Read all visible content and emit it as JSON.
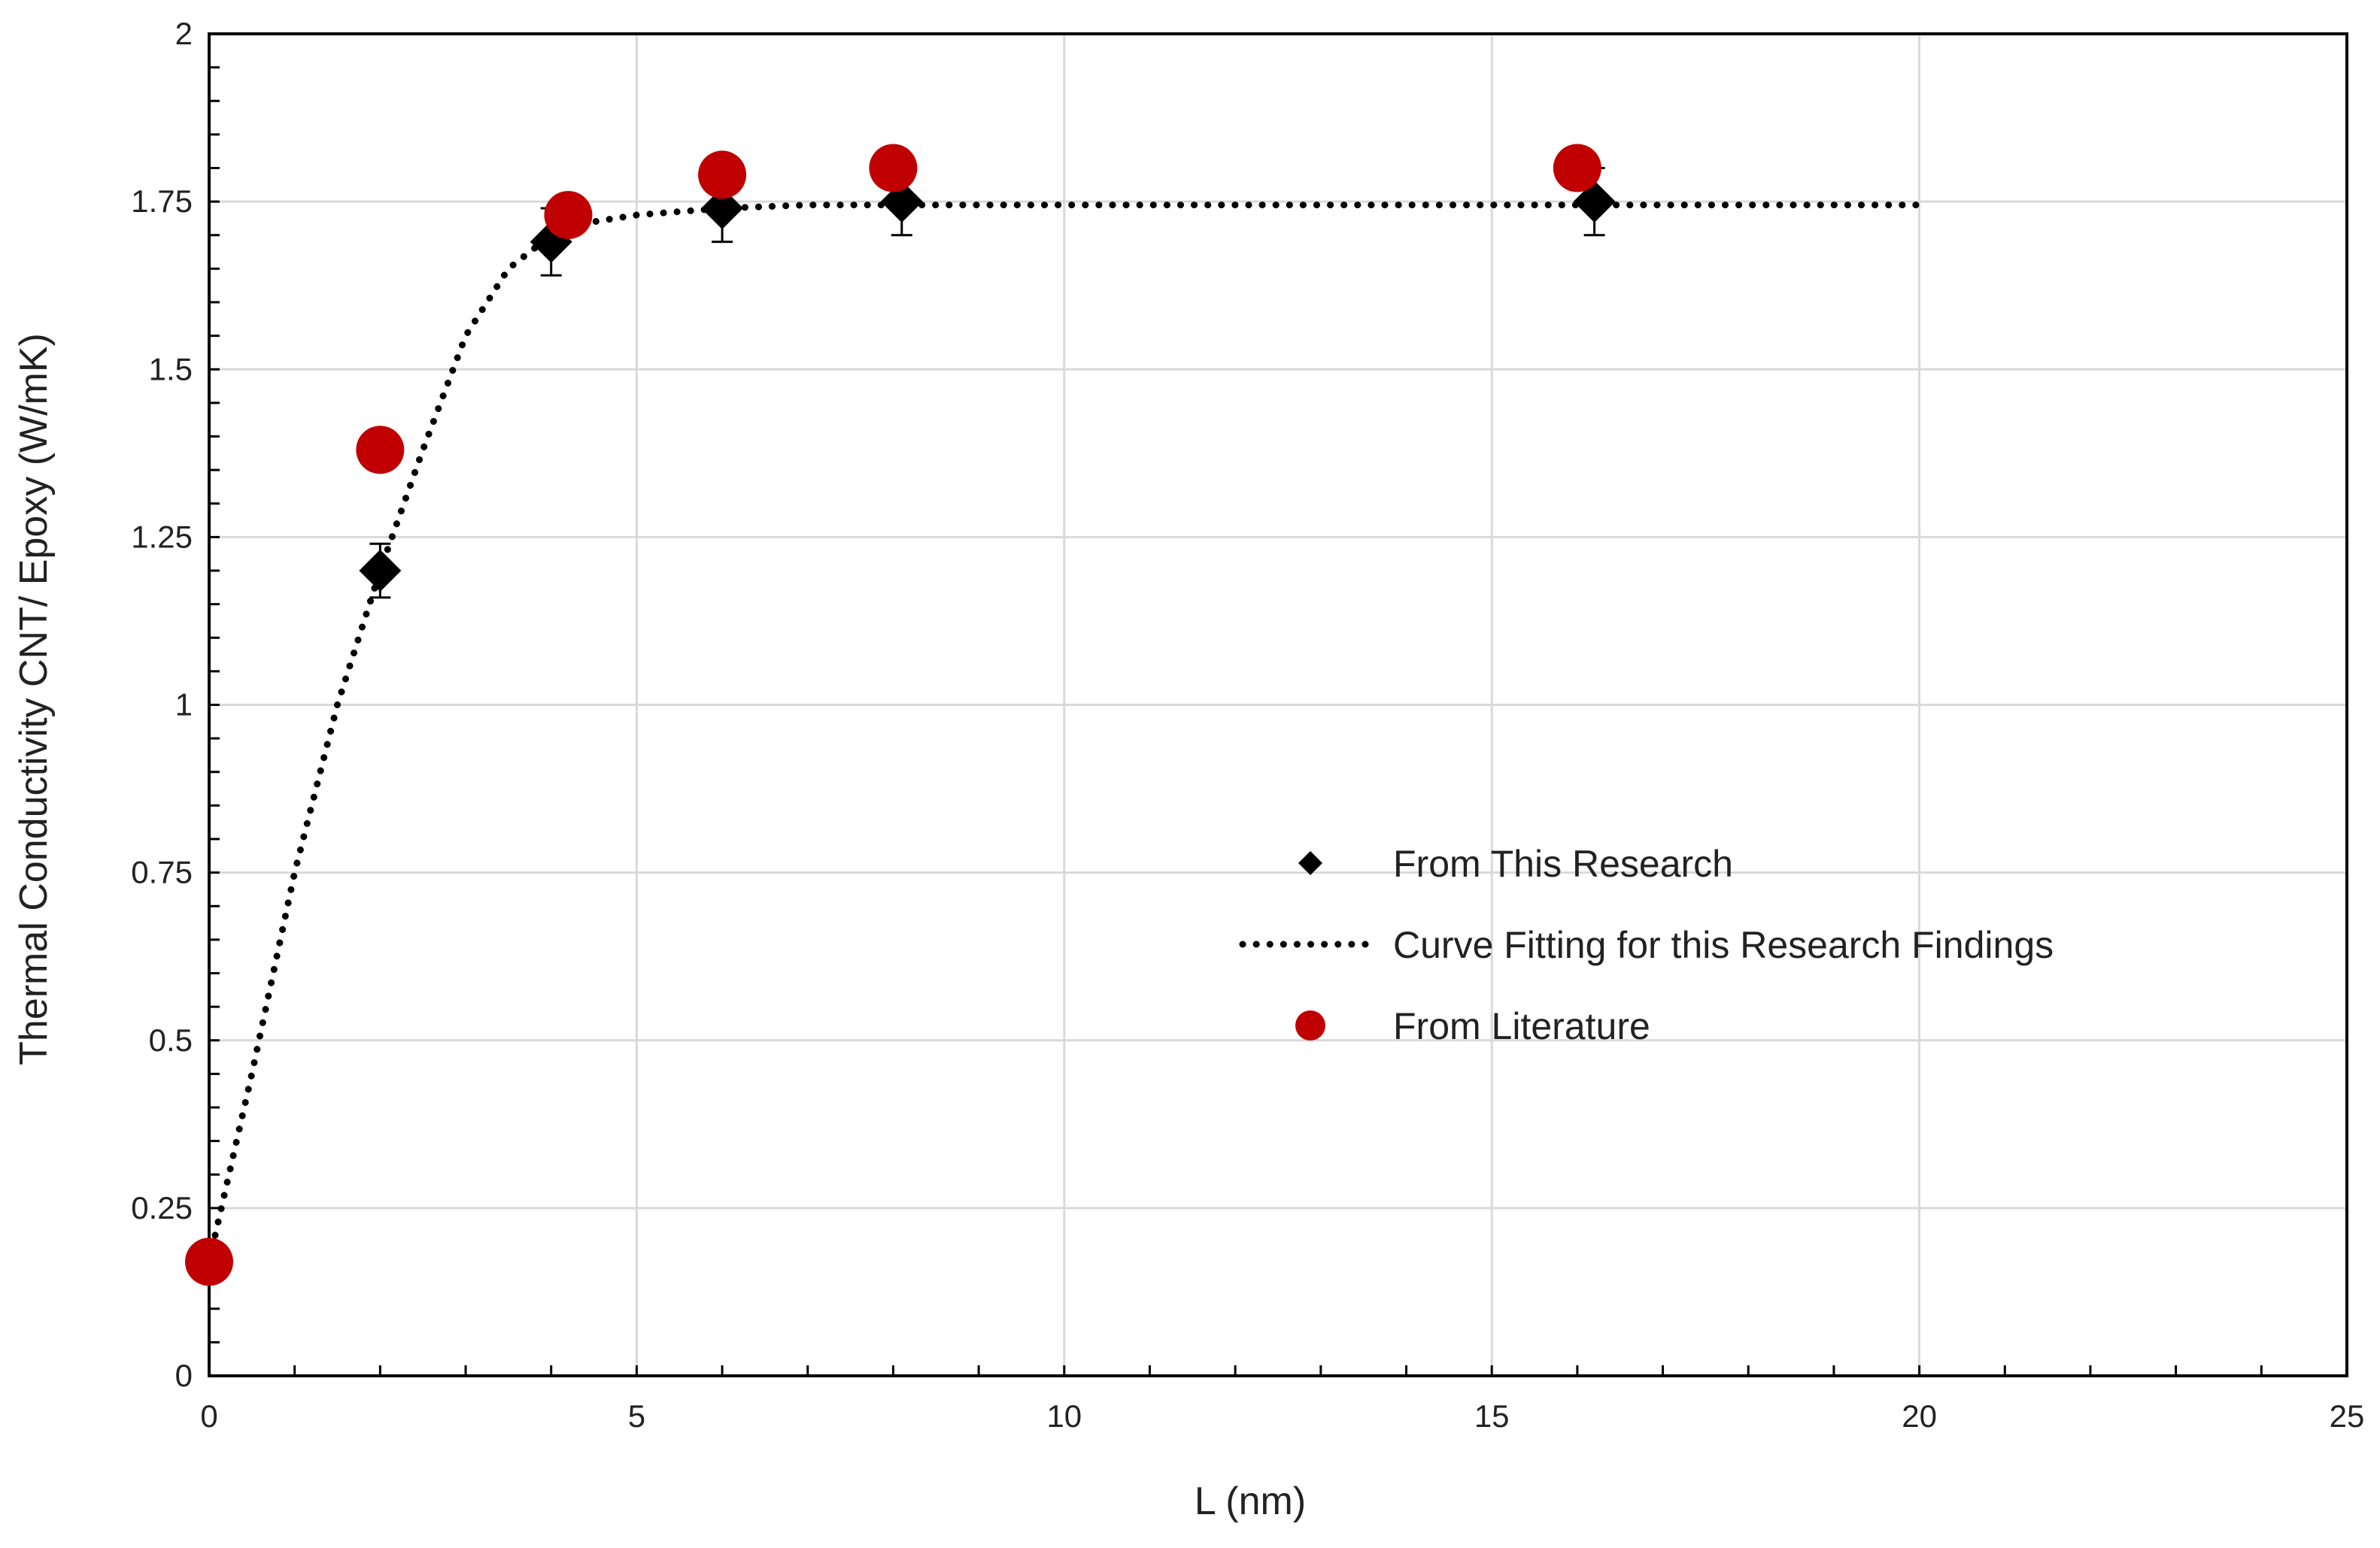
{
  "chart_data": {
    "type": "scatter",
    "title": "",
    "xlabel": "L (nm)",
    "ylabel": "Thermal Conductivity CNT/ Epoxy (W/mK)",
    "xlim": [
      0,
      25
    ],
    "ylim": [
      0,
      2
    ],
    "x_ticks": [
      0,
      5,
      10,
      15,
      20,
      25
    ],
    "y_ticks": [
      0,
      0.25,
      0.5,
      0.75,
      1,
      1.25,
      1.5,
      1.75,
      2
    ],
    "x_tick_labels": [
      "0",
      "5",
      "10",
      "15",
      "20",
      "25"
    ],
    "y_tick_labels": [
      "0",
      "0.25",
      "0.5",
      "0.75",
      "1",
      "1.25",
      "1.5",
      "1.75",
      "2"
    ],
    "grid": true,
    "legend_position": "center-right",
    "series": [
      {
        "name": "From This Research",
        "marker": "diamond",
        "color": "#000000",
        "x": [
          2.0,
          4.0,
          6.0,
          8.1,
          16.2
        ],
        "y": [
          1.2,
          1.69,
          1.74,
          1.75,
          1.75
        ],
        "error": [
          0.04,
          0.05,
          0.05,
          0.05,
          0.05
        ]
      },
      {
        "name": "Curve Fitting for this Research Findings",
        "style": "dotted-line",
        "color": "#000000",
        "x": [
          0,
          0.5,
          1.0,
          1.5,
          2.0,
          2.5,
          3.0,
          3.5,
          4.0,
          4.5,
          5.0,
          6.0,
          7.0,
          8.0,
          10.0,
          12.0,
          14.0,
          16.0,
          18.0,
          20.0
        ],
        "y": [
          0.17,
          0.45,
          0.75,
          1.0,
          1.2,
          1.38,
          1.55,
          1.65,
          1.7,
          1.72,
          1.73,
          1.74,
          1.745,
          1.745,
          1.745,
          1.745,
          1.745,
          1.745,
          1.745,
          1.745
        ]
      },
      {
        "name": "From Literature",
        "marker": "circle",
        "color": "#c00000",
        "x": [
          0,
          2.0,
          4.2,
          6.0,
          8.0,
          16.0
        ],
        "y": [
          0.17,
          1.38,
          1.73,
          1.79,
          1.8,
          1.8
        ]
      }
    ]
  }
}
